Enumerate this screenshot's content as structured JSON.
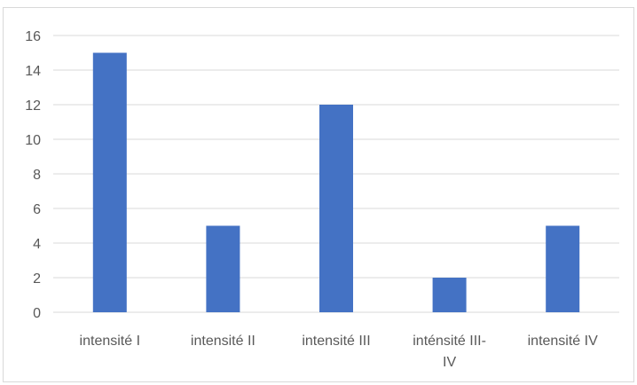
{
  "chart_data": {
    "type": "bar",
    "title": "",
    "xlabel": "",
    "ylabel": "",
    "categories": [
      [
        "intensité I"
      ],
      [
        "intensité II"
      ],
      [
        "intensité III"
      ],
      [
        "inténsité III-",
        "IV"
      ],
      [
        "intensité  IV"
      ]
    ],
    "values": [
      15,
      5,
      12,
      2,
      5
    ],
    "ylim": [
      0,
      16
    ],
    "yticks": [
      0,
      2,
      4,
      6,
      8,
      10,
      12,
      14,
      16
    ],
    "bar_color": "#4472c4",
    "grid": true,
    "legend": false
  }
}
